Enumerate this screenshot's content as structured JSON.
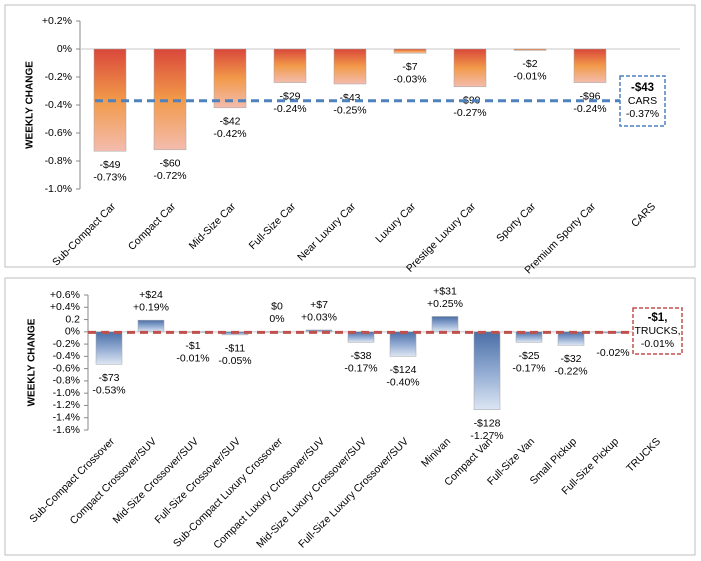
{
  "chart_data": [
    {
      "type": "bar",
      "y_label": "WEEKLY CHANGE",
      "categories": [
        "Sub-Compact Car",
        "Compact Car",
        "Mid-Size Car",
        "Full-Size Car",
        "Near Luxury Car",
        "Luxury Car",
        "Prestige Luxury Car",
        "Sporty Car",
        "Premium Sporty Car",
        "CARS"
      ],
      "values": [
        -0.73,
        -0.72,
        -0.42,
        -0.24,
        -0.25,
        -0.03,
        -0.27,
        -0.01,
        -0.24,
        null
      ],
      "value_labels": [
        "-0.73%",
        "-0.72%",
        "-0.42%",
        "-0.24%",
        "-0.25%",
        "-0.03%",
        "-0.27%",
        "-0.01%",
        "-0.24%",
        null
      ],
      "dollar_labels": [
        "-$49",
        "-$60",
        "-$42",
        "-$29",
        "-$43",
        "-$7",
        "-$99",
        "-$2",
        "-$96",
        null
      ],
      "colors": [
        "#d9473a",
        "#f29a4a",
        "#f3bcae"
      ],
      "reference": {
        "value": -0.37,
        "color": "#4f81bd",
        "lines": [
          "-$43",
          "CARS",
          "-0.37%"
        ]
      },
      "ylim": [
        -1.0,
        0.2
      ],
      "yticks": [
        {
          "value": 0.2,
          "label": "+0.2%"
        },
        {
          "value": 0,
          "label": "0%"
        },
        {
          "value": -0.2,
          "label": "-0.2%"
        },
        {
          "value": -0.4,
          "label": "-0.4%"
        },
        {
          "value": -0.6,
          "label": "-0.6%"
        },
        {
          "value": -0.8,
          "label": "-0.8%"
        },
        {
          "value": -1.0,
          "label": "-1.0%"
        }
      ]
    },
    {
      "type": "bar",
      "y_label": "WEEKLY CHANGE",
      "categories": [
        "Sub-Compact Crossover",
        "Compact Crossover/SUV",
        "Mid-Size Crossover/SUV",
        "Full-Size Crossover/SUV",
        "Sub-Compact Luxury Crossover",
        "Compact Luxury Crossover/SUV",
        "Mid-Size Luxury Crossover/SUV",
        "Full-Size Luxury Crossover/SUV",
        "Minivan",
        "Compact Van",
        "Full-Size Van",
        "Small Pickup",
        "Full-Size Pickup",
        "TRUCKS"
      ],
      "values": [
        -0.53,
        0.19,
        -0.01,
        -0.05,
        0,
        0.03,
        -0.17,
        -0.4,
        0.25,
        -1.27,
        -0.17,
        -0.22,
        -0.02,
        null
      ],
      "value_labels": [
        "-0.53%",
        "+0.19%",
        "-0.01%",
        "-0.05%",
        "0%",
        "+0.03%",
        "-0.17%",
        "-0.40%",
        "+0.25%",
        "-1.27%",
        "-0.17%",
        "-0.22%",
        "-0.02%",
        null
      ],
      "dollar_labels": [
        "-$73",
        "+$24",
        "-$1",
        "-$11",
        "$0",
        "+$7",
        "-$38",
        "-$124",
        "+$31",
        "-$128",
        "-$25",
        "-$32",
        null,
        null
      ],
      "colors": [
        "#4a6ea6",
        "#8fa9d1",
        "#dde6f3"
      ],
      "reference": {
        "value": -0.01,
        "color": "#c0504d",
        "lines": [
          "-$1,",
          "TRUCKS,",
          "-0.01%"
        ]
      },
      "ylim": [
        -1.6,
        0.6
      ],
      "yticks": [
        {
          "value": 0.6,
          "label": "+0.6%"
        },
        {
          "value": 0.4,
          "label": "+0.4%"
        },
        0.2,
        {
          "value": 0,
          "label": "0%"
        },
        {
          "value": -0.2,
          "label": "-0.2%"
        },
        {
          "value": -0.4,
          "label": "-0.4%"
        },
        {
          "value": -0.6,
          "label": "-0.6%"
        },
        {
          "value": -0.8,
          "label": "-0.8%"
        },
        {
          "value": -1.0,
          "label": "-1.0%"
        },
        {
          "value": -1.2,
          "label": "-1.2%"
        },
        {
          "value": -1.4,
          "label": "-1.4%"
        },
        {
          "value": -1.6,
          "label": "-1.6%"
        }
      ]
    }
  ]
}
